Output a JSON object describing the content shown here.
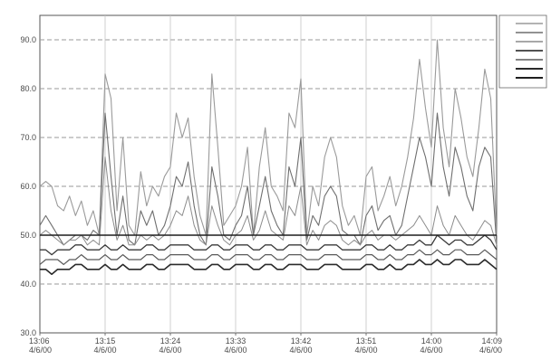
{
  "chart_data": {
    "type": "line",
    "title": "",
    "xlabel": "",
    "ylabel": "",
    "ylim": [
      30,
      95
    ],
    "y_ticks": [
      "30.0",
      "40.0",
      "50.0",
      "60.0",
      "70.0",
      "80.0",
      "90.0"
    ],
    "x_ticks": [
      {
        "time": "13:06",
        "date": "4/6/00"
      },
      {
        "time": "13:15",
        "date": "4/6/00"
      },
      {
        "time": "13:24",
        "date": "4/6/00"
      },
      {
        "time": "13:33",
        "date": "4/6/00"
      },
      {
        "time": "13:42",
        "date": "4/6/00"
      },
      {
        "time": "13:51",
        "date": "4/6/00"
      },
      {
        "time": "14:00",
        "date": "4/6/00"
      },
      {
        "time": "14:09",
        "date": "4/6/00"
      }
    ],
    "grid": true,
    "legend_position": "top-right",
    "series": [
      {
        "color": "#9a9a9a",
        "width": 1.1,
        "values": [
          60,
          61,
          60,
          56,
          55,
          58,
          54,
          57,
          52,
          55,
          50,
          83,
          78,
          55,
          70,
          52,
          50,
          63,
          56,
          60,
          58,
          62,
          64,
          75,
          70,
          74,
          62,
          54,
          50,
          83,
          68,
          52,
          54,
          56,
          60,
          68,
          50,
          64,
          72,
          60,
          58,
          55,
          75,
          72,
          82,
          50,
          60,
          56,
          66,
          70,
          66,
          56,
          52,
          54,
          50,
          62,
          64,
          55,
          58,
          62,
          56,
          60,
          66,
          74,
          86,
          76,
          68,
          90,
          72,
          64,
          80,
          74,
          66,
          62,
          72,
          84,
          78,
          50
        ]
      },
      {
        "color": "#6f6f6f",
        "width": 1.1,
        "values": [
          52,
          54,
          52,
          50,
          48,
          49,
          50,
          50,
          49,
          51,
          50,
          75,
          62,
          50,
          58,
          49,
          48,
          55,
          52,
          55,
          50,
          52,
          56,
          62,
          60,
          65,
          56,
          50,
          48,
          64,
          58,
          50,
          49,
          52,
          54,
          60,
          50,
          56,
          62,
          55,
          52,
          50,
          64,
          60,
          70,
          49,
          54,
          52,
          58,
          60,
          58,
          51,
          50,
          50,
          48,
          54,
          56,
          51,
          53,
          54,
          50,
          52,
          58,
          64,
          70,
          66,
          60,
          75,
          64,
          58,
          68,
          64,
          58,
          55,
          64,
          68,
          66,
          48
        ]
      },
      {
        "color": "#8c8c8c",
        "width": 1.0,
        "values": [
          50,
          51,
          50,
          49,
          48,
          49,
          49,
          50,
          48,
          49,
          48,
          66,
          55,
          49,
          52,
          48,
          48,
          50,
          49,
          50,
          49,
          50,
          52,
          55,
          54,
          58,
          52,
          49,
          48,
          56,
          52,
          49,
          48,
          50,
          51,
          54,
          49,
          51,
          55,
          51,
          50,
          49,
          56,
          54,
          60,
          48,
          51,
          49,
          52,
          53,
          52,
          49,
          48,
          49,
          48,
          50,
          51,
          49,
          50,
          50,
          49,
          50,
          51,
          52,
          54,
          52,
          50,
          56,
          52,
          50,
          54,
          52,
          50,
          49,
          51,
          53,
          52,
          48
        ]
      },
      {
        "color": "#3a3a3a",
        "width": 1.3,
        "values": [
          47,
          47,
          46,
          47,
          47,
          47,
          48,
          48,
          47,
          47,
          47,
          48,
          47,
          47,
          48,
          47,
          47,
          47,
          48,
          48,
          47,
          47,
          48,
          48,
          48,
          48,
          47,
          47,
          47,
          48,
          48,
          47,
          47,
          48,
          48,
          48,
          47,
          47,
          48,
          48,
          47,
          47,
          48,
          48,
          48,
          47,
          47,
          47,
          48,
          48,
          48,
          47,
          47,
          47,
          47,
          48,
          48,
          47,
          47,
          48,
          47,
          47,
          48,
          48,
          49,
          48,
          48,
          50,
          49,
          48,
          49,
          49,
          48,
          48,
          49,
          50,
          49,
          47
        ]
      },
      {
        "color": "#5a5a5a",
        "width": 1.2,
        "values": [
          44,
          45,
          45,
          45,
          44,
          45,
          45,
          46,
          45,
          45,
          45,
          46,
          45,
          45,
          46,
          45,
          45,
          45,
          46,
          46,
          45,
          45,
          46,
          46,
          46,
          46,
          45,
          45,
          45,
          46,
          46,
          45,
          45,
          46,
          46,
          46,
          45,
          45,
          46,
          46,
          45,
          45,
          46,
          46,
          46,
          45,
          45,
          45,
          46,
          46,
          46,
          45,
          45,
          45,
          45,
          46,
          46,
          45,
          45,
          46,
          45,
          45,
          46,
          46,
          47,
          46,
          46,
          47,
          46,
          46,
          47,
          47,
          46,
          46,
          46,
          47,
          46,
          45
        ]
      },
      {
        "color": "#2a2a2a",
        "width": 1.6,
        "values": [
          43,
          43,
          42,
          43,
          43,
          43,
          44,
          44,
          43,
          43,
          43,
          44,
          43,
          43,
          44,
          43,
          43,
          43,
          44,
          44,
          43,
          43,
          44,
          44,
          44,
          44,
          43,
          43,
          43,
          44,
          44,
          43,
          43,
          44,
          44,
          44,
          43,
          43,
          44,
          44,
          43,
          43,
          44,
          44,
          44,
          43,
          43,
          43,
          44,
          44,
          44,
          43,
          43,
          43,
          43,
          44,
          44,
          43,
          43,
          44,
          43,
          43,
          44,
          44,
          45,
          44,
          44,
          45,
          44,
          44,
          45,
          45,
          44,
          44,
          44,
          45,
          44,
          43
        ]
      },
      {
        "color": "#1e1e1e",
        "width": 1.5,
        "values": [
          50,
          50,
          50,
          50,
          50,
          50,
          50,
          50,
          50,
          50,
          50,
          50,
          50,
          50,
          50,
          50,
          50,
          50,
          50,
          50,
          50,
          50,
          50,
          50,
          50,
          50,
          50,
          50,
          50,
          50,
          50,
          50,
          50,
          50,
          50,
          50,
          50,
          50,
          50,
          50,
          50,
          50,
          50,
          50,
          50,
          50,
          50,
          50,
          50,
          50,
          50,
          50,
          50,
          50,
          50,
          50,
          50,
          50,
          50,
          50,
          50,
          50,
          50,
          50,
          50,
          50,
          50,
          50,
          50,
          50,
          50,
          50,
          50,
          50,
          50,
          50,
          50,
          50
        ]
      }
    ]
  }
}
